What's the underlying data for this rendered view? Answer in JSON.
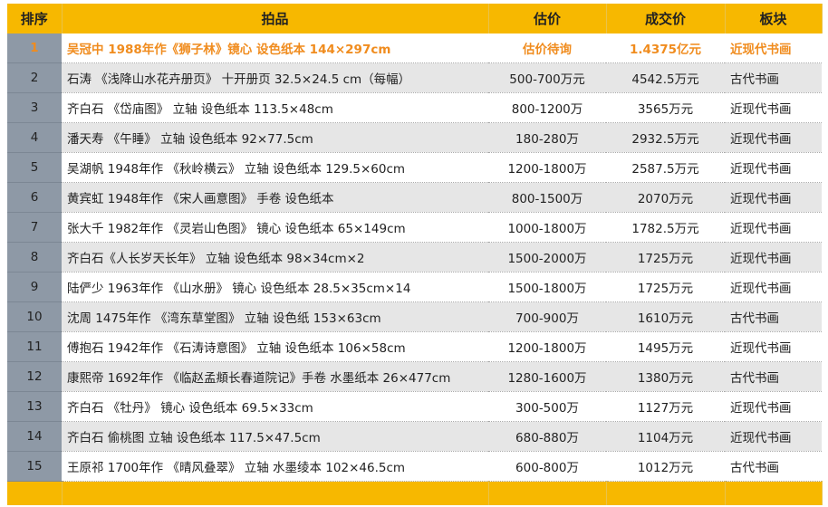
{
  "colors": {
    "header": "#f7b800",
    "highlight": "#f08c1e",
    "rank_bg": "#8e99a6"
  },
  "headers": {
    "rank": "排序",
    "item": "拍品",
    "estimate": "估价",
    "price": "成交价",
    "category": "板块"
  },
  "rows": [
    {
      "rank": "1",
      "item": "吴冠中 1988年作《狮子林》镜心 设色纸本  144×297cm",
      "estimate": "估价待询",
      "price": "1.4375亿元",
      "category": "近现代书画"
    },
    {
      "rank": "2",
      "item": "石涛 《浅降山水花卉册页》 十开册页  32.5×24.5 cm（每幅）",
      "estimate": "500-700万元",
      "price": "4542.5万元",
      "category": "古代书画"
    },
    {
      "rank": "3",
      "item": "齐白石 《岱庙图》 立轴 设色纸本 113.5×48cm",
      "estimate": "800-1200万",
      "price": "3565万元",
      "category": "近现代书画"
    },
    {
      "rank": "4",
      "item": "潘天寿 《午睡》 立轴 设色纸本 92×77.5cm",
      "estimate": "180-280万",
      "price": "2932.5万元",
      "category": "近现代书画"
    },
    {
      "rank": "5",
      "item": "吴湖帆 1948年作 《秋岭横云》 立轴 设色纸本 129.5×60cm",
      "estimate": "1200-1800万",
      "price": "2587.5万元",
      "category": "近现代书画"
    },
    {
      "rank": "6",
      "item": "黄宾虹 1948年作 《宋人画意图》 手卷 设色纸本",
      "estimate": "800-1500万",
      "price": "2070万元",
      "category": "近现代书画"
    },
    {
      "rank": "7",
      "item": "张大千 1982年作 《灵岩山色图》 镜心 设色纸本 65×149cm",
      "estimate": "1000-1800万",
      "price": "1782.5万元",
      "category": "近现代书画"
    },
    {
      "rank": "8",
      "item": "齐白石《人长岁天长年》 立轴 设色纸本 98×34cm×2",
      "estimate": "1500-2000万",
      "price": "1725万元",
      "category": "近现代书画"
    },
    {
      "rank": "9",
      "item": "陆俨少 1963年作 《山水册》 镜心 设色纸本 28.5×35cm×14",
      "estimate": "1500-1800万",
      "price": "1725万元",
      "category": "近现代书画"
    },
    {
      "rank": "10",
      "item": "沈周 1475年作 《湾东草堂图》 立轴 设色纸  153×63cm",
      "estimate": "700-900万",
      "price": "1610万元",
      "category": "古代书画"
    },
    {
      "rank": "11",
      "item": "傅抱石 1942年作 《石涛诗意图》 立轴 设色纸本  106×58cm",
      "estimate": "1200-1800万",
      "price": "1495万元",
      "category": "近现代书画"
    },
    {
      "rank": "12",
      "item": "康熙帝 1692年作 《临赵孟頫长春道院记》手卷 水墨纸本 26×477cm",
      "estimate": "1280-1600万",
      "price": "1380万元",
      "category": "古代书画"
    },
    {
      "rank": "13",
      "item": "齐白石 《牡丹》 镜心 设色纸本  69.5×33cm",
      "estimate": "300-500万",
      "price": "1127万元",
      "category": "近现代书画"
    },
    {
      "rank": "14",
      "item": "齐白石 偷桃图 立轴 设色纸本 117.5×47.5cm",
      "estimate": "680-880万",
      "price": "1104万元",
      "category": "近现代书画"
    },
    {
      "rank": "15",
      "item": "王原祁 1700年作 《晴风叠翠》 立轴 水墨绫本  102×46.5cm",
      "estimate": "600-800万",
      "price": "1012万元",
      "category": "古代书画"
    }
  ]
}
